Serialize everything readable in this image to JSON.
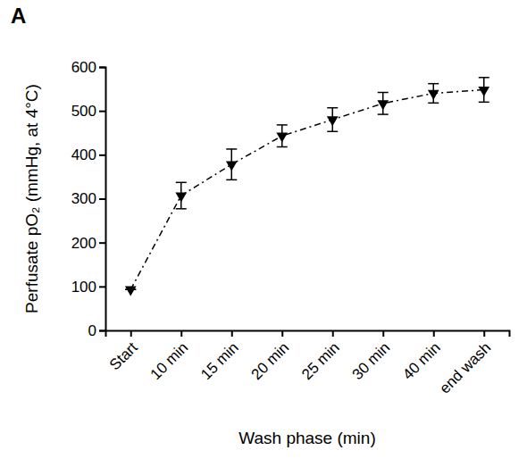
{
  "chart_data": {
    "type": "line",
    "title": "A",
    "x_label": "Wash phase (min)",
    "y_label": "Perfusate pO₂ (mmHg, at 4°C)",
    "categories": [
      "Start",
      "10 min",
      "15 min",
      "20 min",
      "25 min",
      "30 min",
      "40 min",
      "end wash"
    ],
    "values": [
      93,
      307,
      378,
      443,
      480,
      517,
      540,
      548
    ],
    "errors": [
      0,
      30,
      35,
      25,
      27,
      25,
      22,
      28
    ],
    "color": "#000000",
    "marker": "triangle-down",
    "line_style": "dashdot",
    "ylim": [
      0,
      600
    ],
    "yticks": [
      0,
      100,
      200,
      300,
      400,
      500,
      600
    ],
    "grid": false
  }
}
